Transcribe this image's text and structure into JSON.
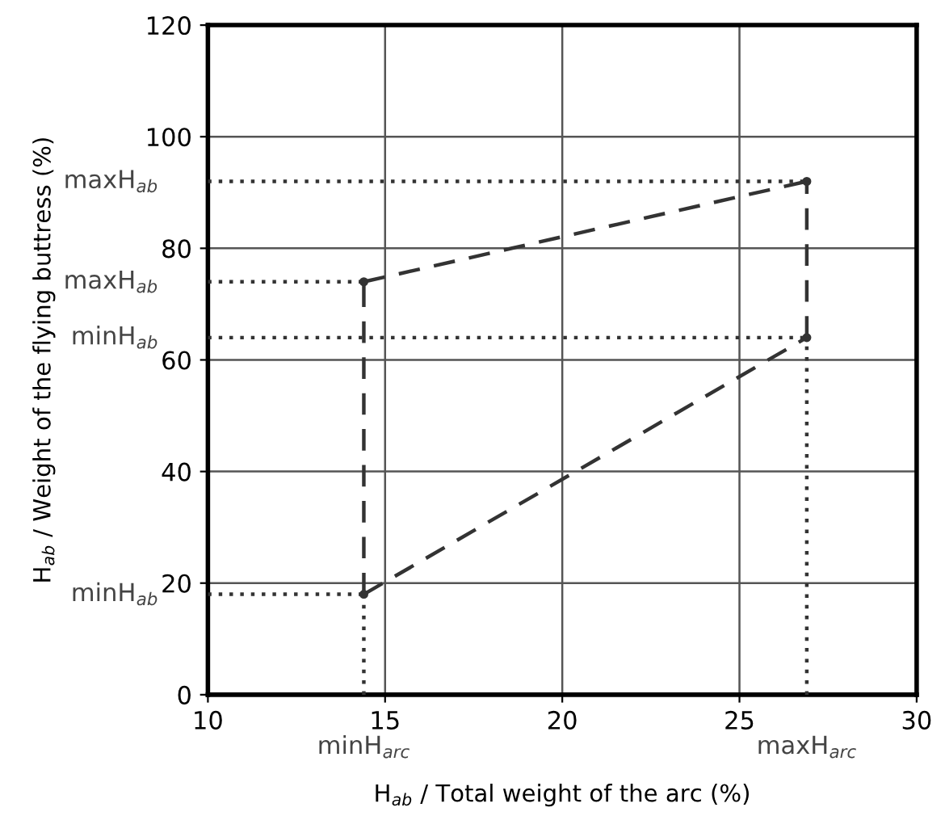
{
  "chart_data": {
    "type": "line",
    "xlabel": "H$_{ab}$ / Total weight of the arc (%)",
    "ylabel": "H$_{ab}$ / Weight of the flying buttress (%)",
    "xlim": [
      10,
      30
    ],
    "xticks": [
      10,
      15,
      20,
      25,
      30
    ],
    "ylim": [
      0,
      120
    ],
    "yticks": [
      0,
      20,
      40,
      60,
      80,
      100,
      120
    ],
    "annotations": [
      {
        "text": "maxH$_{ab}$",
        "x": 10,
        "y": 92
      },
      {
        "text": "maxH$_{ab}$",
        "x": 10,
        "y": 74
      },
      {
        "text": "minH$_{ab}$",
        "x": 10,
        "y": 64
      },
      {
        "text": "minH$_{ab}$",
        "x": 10,
        "y": 18
      },
      {
        "text": "minH$_{arc}$",
        "x": 14.4,
        "y": 0
      },
      {
        "text": "maxH$_{arc}$",
        "x": 26.9,
        "y": 0
      }
    ],
    "grid": true,
    "series": [
      {
        "color": "#333333",
        "line_style": "dashed",
        "marker": "circle",
        "x": [
          14.4,
          26.9
        ],
        "values": [
          74,
          92
        ]
      },
      {
        "color": "#333333",
        "line_style": "dashed",
        "marker": "circle",
        "x": [
          14.4,
          26.9
        ],
        "values": [
          18,
          64
        ]
      },
      {
        "color": "#333333",
        "line_style": "dashed",
        "x": [
          14.4,
          14.4
        ],
        "values": [
          18,
          74
        ]
      },
      {
        "color": "#333333",
        "line_style": "dashed",
        "x": [
          26.9,
          26.9
        ],
        "values": [
          64,
          92
        ]
      },
      {
        "color": "#333333",
        "line_style": "dotted",
        "x": [
          10,
          26.9
        ],
        "values": [
          92,
          92
        ]
      },
      {
        "color": "#333333",
        "line_style": "dotted",
        "x": [
          10,
          14.4
        ],
        "values": [
          74,
          74
        ]
      },
      {
        "color": "#333333",
        "line_style": "dotted",
        "x": [
          10,
          14.4
        ],
        "values": [
          18,
          18
        ]
      },
      {
        "color": "#333333",
        "line_style": "dotted",
        "x": [
          14.4,
          14.4
        ],
        "values": [
          0,
          18
        ]
      },
      {
        "color": "#333333",
        "line_style": "dotted",
        "x": [
          26.9,
          26.9
        ],
        "values": [
          0,
          64
        ]
      },
      {
        "color": "#333333",
        "line_style": "dotted",
        "x": [
          10,
          26.9
        ],
        "values": [
          64,
          64
        ]
      }
    ]
  }
}
